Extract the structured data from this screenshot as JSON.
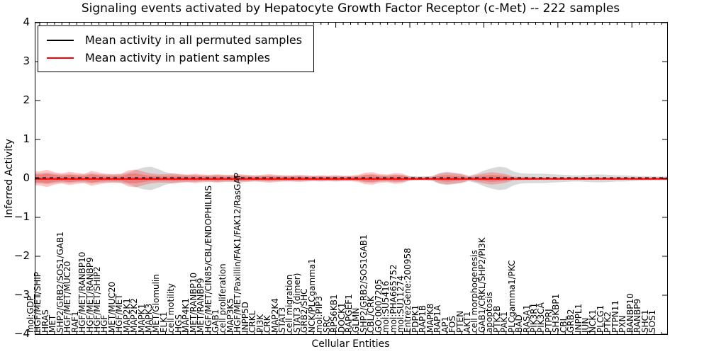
{
  "title": "Signaling events activated by Hepatocyte Growth Factor Receptor (c-Met) -- 222 samples",
  "axes": {
    "ylabel": "Inferred Activity",
    "xlabel": "Cellular Entities",
    "yticks": [
      "4",
      "3",
      "2",
      "1",
      "0",
      "-1",
      "-2",
      "-3",
      "-4"
    ],
    "ylim": [
      -4,
      4
    ]
  },
  "legend": {
    "items": [
      {
        "label": "Mean activity in all permuted samples",
        "color": "#000000"
      },
      {
        "label": "Mean activity in patient samples",
        "color": "#ff0000"
      }
    ]
  },
  "chart_data": {
    "type": "line",
    "title": "Signaling events activated by Hepatocyte Growth Factor Receptor (c-Met) -- 222 samples",
    "xlabel": "Cellular Entities",
    "ylabel": "Inferred Activity",
    "ylim": [
      -4,
      4
    ],
    "yticks": [
      4,
      3,
      2,
      1,
      0,
      -1,
      -2,
      -3,
      -4
    ],
    "grid": false,
    "legend_position": "upper left",
    "categories": [
      "mol:GDP",
      "HGF/MET/SHIP",
      "HRAS",
      "MET",
      "SHP2/GRB2/SOS1/GAB1",
      "HGF/MET/MUC20",
      "RAF1",
      "HGF/MET/RANBP10",
      "HGF/MET/RANBP9",
      "HGF/MET/SHIP2",
      "HGF",
      "MET/MUC20",
      "HGF/MET",
      "MAP2K1",
      "MAP2K2",
      "MAPK1",
      "MAPK3",
      "MET/Glomulin",
      "ELK1",
      "cell motility",
      "HGS",
      "MAP4K1",
      "MET/RANBP10",
      "MET/RANBP9",
      "HGF/MET/CIN85/CBL/ENDOPHILINS",
      "GAB1",
      "cell proliferation",
      "MAP3K5",
      "HGF/MET/Paxillin/FAK1/FAK12/RasGAP",
      "INPP5D",
      "CRKL",
      "PI3K",
      "CRK",
      "MAP2K4",
      "STAT3",
      "cell migration",
      "STAT3 (dimer)",
      "GRB2/SHC",
      "NCK/PLCgamma1",
      "mol:PIP3",
      "SRC",
      "RPS6KB1",
      "DOCK1",
      "RAPGEF1",
      "GLMN",
      "SHP2/GRB2/SOS1GAB1",
      "CBL/CRK",
      "GO:0007205",
      "mol:SU5416",
      "mol:PHA665752",
      "mol:SU11274",
      "EntrezGene:200958",
      "PDPK1",
      "RAP1B",
      "MAPK8",
      "RAP1A",
      "AP1",
      "FOS",
      "PTEN",
      "AKT1",
      "cell morphogenesis",
      "GAB1/CRKL/SHP2/PI3K",
      "apoptosis",
      "PTK2B",
      "PAK1",
      "PLCgamma1/PKC",
      "BAD",
      "RASA1",
      "PIK3R1",
      "PIK3CA",
      "PTPRJ",
      "SH3KBP1",
      "CBL",
      "GRB2",
      "INPPL1",
      "JUN",
      "NCK1",
      "PLCG1",
      "PTK2",
      "PTPN11",
      "PXN",
      "RANBP10",
      "RANBP9",
      "SHC1",
      "SOS1"
    ],
    "series": [
      {
        "name": "Mean activity in all permuted samples",
        "color": "#000000",
        "line_style": "dashed",
        "values": [
          0,
          0,
          0,
          0,
          0,
          0,
          0,
          0,
          0,
          0,
          0,
          0,
          0,
          0,
          0,
          0,
          0,
          0,
          0,
          0,
          0,
          0,
          0,
          0,
          0,
          0,
          0,
          0,
          0,
          0,
          0,
          0,
          0,
          0,
          0,
          0,
          0,
          0,
          0,
          0,
          0,
          0,
          0,
          0,
          0,
          0,
          0,
          0,
          0,
          0,
          0,
          0,
          0,
          0,
          0,
          0,
          0,
          0,
          0,
          0,
          0,
          0,
          0,
          0,
          0,
          0,
          0,
          0,
          0,
          0,
          0,
          0,
          0,
          0,
          0,
          0,
          0,
          0,
          0,
          0,
          0,
          0,
          0,
          0,
          0
        ]
      },
      {
        "name": "Mean activity in patient samples",
        "color": "#ff0000",
        "line_style": "solid",
        "values": [
          0,
          0,
          0,
          0,
          0,
          0,
          0,
          0,
          0,
          0,
          0,
          0,
          0,
          0,
          0,
          0,
          0,
          0,
          0,
          0,
          0,
          0,
          0,
          0,
          0,
          0,
          0,
          0,
          0,
          0,
          0,
          0,
          0,
          0,
          0,
          0,
          0,
          0,
          0,
          0,
          0,
          0,
          0,
          0,
          0,
          0,
          0,
          0,
          0,
          0,
          0,
          0,
          0,
          0,
          0,
          0,
          0,
          0,
          0,
          0,
          0,
          0,
          0,
          0,
          0,
          0,
          0,
          0,
          0,
          0,
          0,
          0,
          0,
          0,
          0,
          0,
          0,
          0,
          0,
          0,
          0,
          0,
          0,
          0,
          0
        ]
      }
    ],
    "bands": {
      "description": "shaded envelopes around zero, half-width in activity units",
      "gray_halfwidth": [
        0.13,
        0.15,
        0.12,
        0.1,
        0.12,
        0.1,
        0.1,
        0.13,
        0.11,
        0.1,
        0.1,
        0.11,
        0.15,
        0.22,
        0.28,
        0.3,
        0.24,
        0.16,
        0.12,
        0.1,
        0.09,
        0.09,
        0.08,
        0.08,
        0.09,
        0.08,
        0.08,
        0.08,
        0.08,
        0.07,
        0.07,
        0.08,
        0.07,
        0.07,
        0.07,
        0.07,
        0.07,
        0.06,
        0.07,
        0.06,
        0.07,
        0.06,
        0.06,
        0.07,
        0.1,
        0.11,
        0.08,
        0.08,
        0.1,
        0.09,
        0.06,
        0.05,
        0.05,
        0.06,
        0.14,
        0.17,
        0.15,
        0.12,
        0.07,
        0.12,
        0.2,
        0.26,
        0.3,
        0.28,
        0.18,
        0.13,
        0.12,
        0.12,
        0.12,
        0.11,
        0.1,
        0.09,
        0.08,
        0.08,
        0.09,
        0.1,
        0.1,
        0.09,
        0.08,
        0.08,
        0.07,
        0.06,
        0.06,
        0.05,
        0.05
      ],
      "red_halfwidth": [
        0.18,
        0.22,
        0.16,
        0.13,
        0.17,
        0.14,
        0.12,
        0.19,
        0.15,
        0.12,
        0.11,
        0.12,
        0.21,
        0.23,
        0.17,
        0.13,
        0.11,
        0.11,
        0.13,
        0.11,
        0.1,
        0.12,
        0.1,
        0.09,
        0.11,
        0.09,
        0.09,
        0.11,
        0.09,
        0.08,
        0.09,
        0.11,
        0.09,
        0.08,
        0.08,
        0.09,
        0.08,
        0.07,
        0.08,
        0.07,
        0.08,
        0.07,
        0.07,
        0.09,
        0.15,
        0.16,
        0.11,
        0.1,
        0.14,
        0.12,
        0.05,
        0.04,
        0.04,
        0.05,
        0.12,
        0.15,
        0.13,
        0.11,
        0.05,
        0.09,
        0.13,
        0.16,
        0.14,
        0.11,
        0.05,
        0.04,
        0.04,
        0.03,
        0.03,
        0.03,
        0.03,
        0.03,
        0.03,
        0.03,
        0.03,
        0.03,
        0.03,
        0.03,
        0.03,
        0.03,
        0.03,
        0.03,
        0.03,
        0.03,
        0.03
      ]
    },
    "band_colors": {
      "gray": "#aaaaaa",
      "red": "#ff2a2a"
    },
    "n_points": 85
  }
}
